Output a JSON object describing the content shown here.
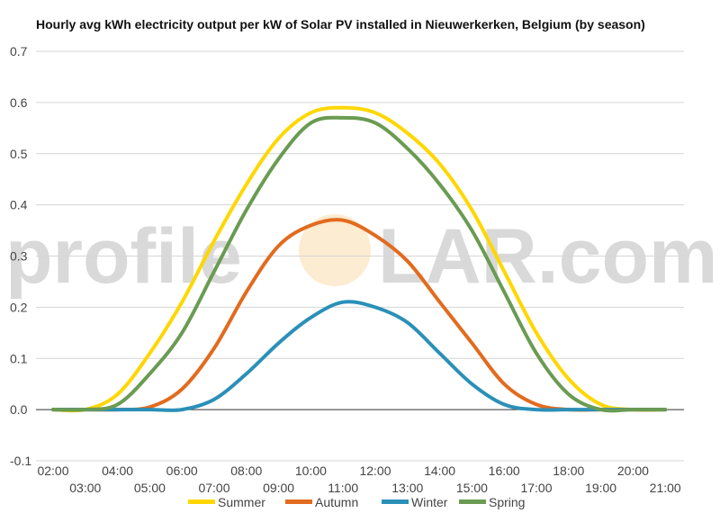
{
  "chart_data": {
    "type": "line",
    "title": "Hourly avg kWh electricity output per kW of Solar PV installed in Nieuwerkerken, Belgium (by season)",
    "watermark": {
      "left": "profile",
      "right": "LAR.com"
    },
    "ylim": [
      -0.1,
      0.7
    ],
    "y_ticks": [
      "-0.1",
      "0.0",
      "0.1",
      "0.2",
      "0.3",
      "0.4",
      "0.5",
      "0.6",
      "0.7"
    ],
    "y_tick_values": [
      -0.1,
      0.0,
      0.1,
      0.2,
      0.3,
      0.4,
      0.5,
      0.6,
      0.7
    ],
    "x_categories": [
      "02:00",
      "03:00",
      "04:00",
      "05:00",
      "06:00",
      "07:00",
      "08:00",
      "09:00",
      "10:00",
      "11:00",
      "12:00",
      "13:00",
      "14:00",
      "15:00",
      "16:00",
      "17:00",
      "18:00",
      "19:00",
      "20:00",
      "21:00"
    ],
    "legend_position": "bottom",
    "grid": true,
    "series": [
      {
        "name": "Summer",
        "color": "#FFD700",
        "values": [
          0.0,
          0.0,
          0.03,
          0.11,
          0.21,
          0.33,
          0.44,
          0.53,
          0.58,
          0.59,
          0.58,
          0.54,
          0.48,
          0.39,
          0.27,
          0.15,
          0.06,
          0.01,
          0.0,
          0.0
        ]
      },
      {
        "name": "Autumn",
        "color": "#E26B1E",
        "values": [
          0.0,
          0.0,
          0.0,
          0.005,
          0.04,
          0.12,
          0.23,
          0.32,
          0.36,
          0.37,
          0.34,
          0.29,
          0.21,
          0.13,
          0.05,
          0.01,
          0.0,
          0.0,
          0.0,
          0.0
        ]
      },
      {
        "name": "Winter",
        "color": "#2A90B8",
        "values": [
          0.0,
          0.0,
          0.0,
          0.0,
          0.0,
          0.02,
          0.07,
          0.13,
          0.18,
          0.21,
          0.2,
          0.17,
          0.11,
          0.05,
          0.01,
          0.0,
          0.0,
          0.0,
          0.0,
          0.0
        ]
      },
      {
        "name": "Spring",
        "color": "#6A9B52",
        "values": [
          0.0,
          0.0,
          0.01,
          0.07,
          0.15,
          0.27,
          0.39,
          0.49,
          0.56,
          0.57,
          0.56,
          0.51,
          0.44,
          0.35,
          0.23,
          0.11,
          0.03,
          0.0,
          0.0,
          0.0
        ]
      }
    ]
  }
}
